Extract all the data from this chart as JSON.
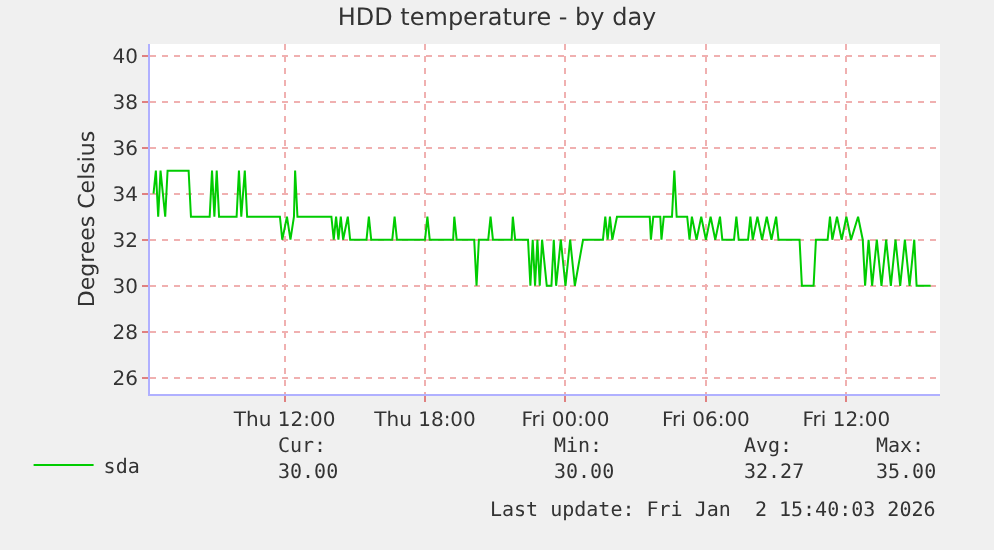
{
  "chart_data": {
    "type": "line",
    "title": "HDD temperature - by day",
    "ylabel": "Degrees Celsius",
    "xlim": [
      "2026-01-01T06:15",
      "2026-01-02T16:00"
    ],
    "xticks": [
      {
        "value": "2026-01-01T12:00",
        "label": "Thu 12:00"
      },
      {
        "value": "2026-01-01T18:00",
        "label": "Thu 18:00"
      },
      {
        "value": "2026-01-02T00:00",
        "label": "Fri 00:00"
      },
      {
        "value": "2026-01-02T06:00",
        "label": "Fri 06:00"
      },
      {
        "value": "2026-01-02T12:00",
        "label": "Fri 12:00"
      }
    ],
    "ylim": [
      25.3,
      40.5
    ],
    "yticks": [
      26,
      28,
      30,
      32,
      34,
      36,
      38,
      40
    ],
    "grid": true,
    "legend": "bottom left",
    "marker": "none",
    "line_style": "solid",
    "series": [
      {
        "name": "sda",
        "color": "#00cc00",
        "x": [
          "2026-01-01T06:24",
          "2026-01-01T06:30",
          "2026-01-01T06:36",
          "2026-01-01T06:42",
          "2026-01-01T06:48",
          "2026-01-01T06:54",
          "2026-01-01T07:00",
          "2026-01-01T07:54",
          "2026-01-01T08:00",
          "2026-01-01T08:48",
          "2026-01-01T08:54",
          "2026-01-01T09:00",
          "2026-01-01T09:06",
          "2026-01-01T09:12",
          "2026-01-01T09:57",
          "2026-01-01T10:03",
          "2026-01-01T10:09",
          "2026-01-01T10:18",
          "2026-01-01T10:24",
          "2026-01-01T11:48",
          "2026-01-01T11:54",
          "2026-01-01T12:06",
          "2026-01-01T12:15",
          "2026-01-01T12:24",
          "2026-01-01T12:27",
          "2026-01-01T12:33",
          "2026-01-01T14:00",
          "2026-01-01T14:06",
          "2026-01-01T14:12",
          "2026-01-01T14:18",
          "2026-01-01T14:24",
          "2026-01-01T14:30",
          "2026-01-01T14:42",
          "2026-01-01T14:48",
          "2026-01-01T15:30",
          "2026-01-01T15:36",
          "2026-01-01T15:42",
          "2026-01-01T16:36",
          "2026-01-01T16:42",
          "2026-01-01T16:48",
          "2026-01-01T18:00",
          "2026-01-01T18:06",
          "2026-01-01T18:12",
          "2026-01-01T19:12",
          "2026-01-01T19:15",
          "2026-01-01T19:21",
          "2026-01-01T20:06",
          "2026-01-01T20:12",
          "2026-01-01T20:18",
          "2026-01-01T20:42",
          "2026-01-01T20:48",
          "2026-01-01T20:54",
          "2026-01-01T21:42",
          "2026-01-01T21:45",
          "2026-01-01T21:51",
          "2026-01-01T22:24",
          "2026-01-01T22:30",
          "2026-01-01T22:36",
          "2026-01-01T22:42",
          "2026-01-01T22:48",
          "2026-01-01T22:54",
          "2026-01-01T23:00",
          "2026-01-01T23:12",
          "2026-01-01T23:24",
          "2026-01-01T23:30",
          "2026-01-01T23:36",
          "2026-01-01T23:48",
          "2026-01-02T00:00",
          "2026-01-02T00:12",
          "2026-01-02T00:24",
          "2026-01-02T00:45",
          "2026-01-02T01:36",
          "2026-01-02T01:42",
          "2026-01-02T01:48",
          "2026-01-02T01:54",
          "2026-01-02T02:00",
          "2026-01-02T02:12",
          "2026-01-02T03:36",
          "2026-01-02T03:39",
          "2026-01-02T03:45",
          "2026-01-02T04:03",
          "2026-01-02T04:06",
          "2026-01-02T04:12",
          "2026-01-02T04:33",
          "2026-01-02T04:39",
          "2026-01-02T04:45",
          "2026-01-02T05:12",
          "2026-01-02T05:18",
          "2026-01-02T05:24",
          "2026-01-02T05:36",
          "2026-01-02T05:48",
          "2026-01-02T06:00",
          "2026-01-02T06:12",
          "2026-01-02T06:24",
          "2026-01-02T06:36",
          "2026-01-02T06:42",
          "2026-01-02T07:12",
          "2026-01-02T07:18",
          "2026-01-02T07:24",
          "2026-01-02T07:48",
          "2026-01-02T07:54",
          "2026-01-02T08:00",
          "2026-01-02T08:12",
          "2026-01-02T08:24",
          "2026-01-02T08:36",
          "2026-01-02T08:48",
          "2026-01-02T09:00",
          "2026-01-02T09:06",
          "2026-01-02T10:00",
          "2026-01-02T10:06",
          "2026-01-02T10:36",
          "2026-01-02T10:42",
          "2026-01-02T11:12",
          "2026-01-02T11:18",
          "2026-01-02T11:24",
          "2026-01-02T11:36",
          "2026-01-02T11:48",
          "2026-01-02T12:00",
          "2026-01-02T12:12",
          "2026-01-02T12:30",
          "2026-01-02T12:42",
          "2026-01-02T12:48",
          "2026-01-02T12:57",
          "2026-01-02T13:06",
          "2026-01-02T13:18",
          "2026-01-02T13:30",
          "2026-01-02T13:42",
          "2026-01-02T13:54",
          "2026-01-02T14:06",
          "2026-01-02T14:18",
          "2026-01-02T14:30",
          "2026-01-02T14:42",
          "2026-01-02T14:54",
          "2026-01-02T15:00",
          "2026-01-02T15:36"
        ],
        "values": [
          34,
          35,
          33,
          35,
          34,
          33,
          35,
          35,
          33,
          33,
          35,
          33,
          35,
          33,
          33,
          35,
          33,
          35,
          33,
          33,
          32,
          33,
          32,
          33,
          35,
          33,
          33,
          32,
          33,
          32,
          33,
          32,
          33,
          32,
          32,
          33,
          32,
          32,
          33,
          32,
          32,
          33,
          32,
          32,
          33,
          32,
          32,
          30,
          32,
          32,
          33,
          32,
          32,
          33,
          32,
          32,
          30,
          32,
          30,
          32,
          30,
          32,
          30,
          30,
          32,
          30,
          32,
          30,
          32,
          30,
          32,
          32,
          33,
          32,
          33,
          32,
          33,
          33,
          32,
          33,
          33,
          32,
          33,
          33,
          35,
          33,
          33,
          32,
          33,
          32,
          33,
          32,
          33,
          32,
          33,
          32,
          32,
          33,
          32,
          32,
          33,
          32,
          33,
          32,
          33,
          32,
          33,
          32,
          32,
          30,
          30,
          32,
          32,
          33,
          32,
          33,
          32,
          33,
          32,
          33,
          32,
          30,
          32,
          30,
          32,
          30,
          32,
          30,
          32,
          30,
          32,
          30,
          32,
          30,
          30
        ]
      }
    ],
    "annotations": [
      "Cur:\n30.00",
      "Min:\n30.00",
      "Avg:\n32.27",
      "Max:\n35.00",
      "Last update: Fri Jan  2 15:40:03 2026"
    ]
  }
}
